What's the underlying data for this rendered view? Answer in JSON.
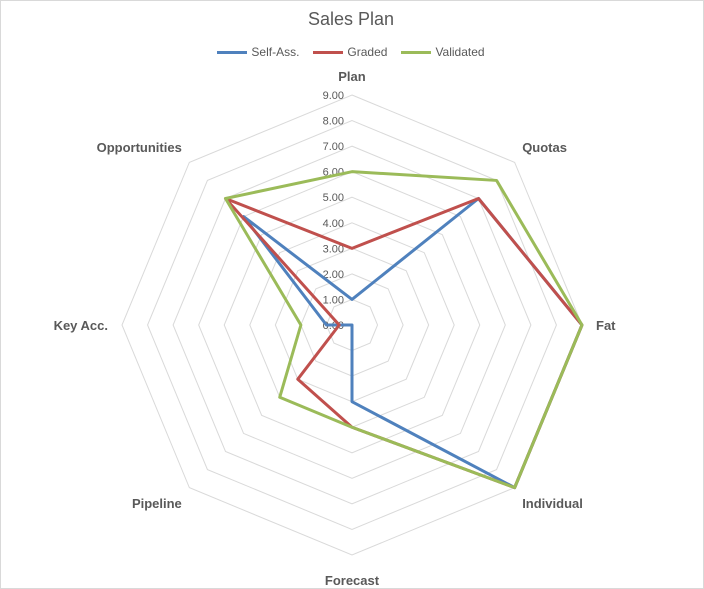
{
  "chart_data": {
    "type": "radar",
    "title": "Sales Plan",
    "categories": [
      "Plan",
      "Quotas",
      "Fat",
      "Individual",
      "Forecast",
      "Pipeline",
      "Key Acc.",
      "Opportunities"
    ],
    "ticks": [
      "0.00",
      "1.00",
      "2.00",
      "3.00",
      "4.00",
      "5.00",
      "6.00",
      "7.00",
      "8.00",
      "9.00"
    ],
    "rlim": [
      0,
      9
    ],
    "grid": true,
    "legend_position": "top",
    "series": [
      {
        "name": "Self-Ass.",
        "color": "#4f81bd",
        "values": [
          1,
          7,
          9,
          9,
          3,
          0,
          1,
          6
        ]
      },
      {
        "name": "Graded",
        "color": "#c0504d",
        "values": [
          3,
          7,
          9,
          9,
          4,
          3,
          0.5,
          7
        ]
      },
      {
        "name": "Validated",
        "color": "#9bbb59",
        "values": [
          6,
          8,
          9,
          9,
          4,
          4,
          2,
          7
        ]
      }
    ]
  }
}
